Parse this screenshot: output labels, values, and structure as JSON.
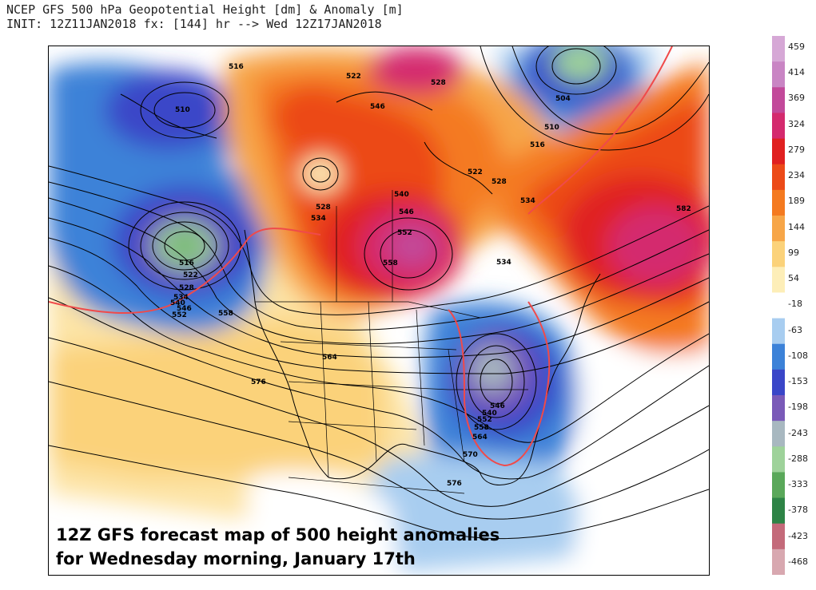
{
  "header": {
    "line1": "NCEP GFS 500 hPa Geopotential Height [dm] & Anomaly [m]",
    "line2": "INIT: 12Z11JAN2018 fx: [144] hr --> Wed 12Z17JAN2018"
  },
  "caption": {
    "line1": "12Z GFS forecast map of 500 height anomalies",
    "line2": "for Wednesday morning, January 17th"
  },
  "colorbar": {
    "labels": [
      "459",
      "414",
      "369",
      "324",
      "279",
      "234",
      "189",
      "144",
      "99",
      "54",
      "-18",
      "-63",
      "-108",
      "-153",
      "-198",
      "-243",
      "-288",
      "-333",
      "-378",
      "-423",
      "-468"
    ],
    "colors": [
      "#d6a8d6",
      "#c985c4",
      "#c2499a",
      "#d42a6e",
      "#e02020",
      "#ec4a18",
      "#f47a20",
      "#f7a648",
      "#fbd27a",
      "#fdeeb8",
      "#ffffff",
      "#a8cdf0",
      "#3c82d8",
      "#3a46c8",
      "#7a5ab8",
      "#a8b8c0",
      "#9ed29a",
      "#5aa85a",
      "#2e8446",
      "#c46a7a",
      "#d8a8b0"
    ]
  },
  "contours": {
    "labels": [
      "516",
      "510",
      "522",
      "528",
      "546",
      "504",
      "510",
      "516",
      "522",
      "528",
      "540",
      "546",
      "552",
      "558",
      "534",
      "582",
      "528",
      "534",
      "516",
      "522",
      "528",
      "534",
      "540",
      "546",
      "552",
      "558",
      "564",
      "576",
      "546",
      "540",
      "552",
      "558",
      "564",
      "570",
      "576",
      "534"
    ]
  }
}
